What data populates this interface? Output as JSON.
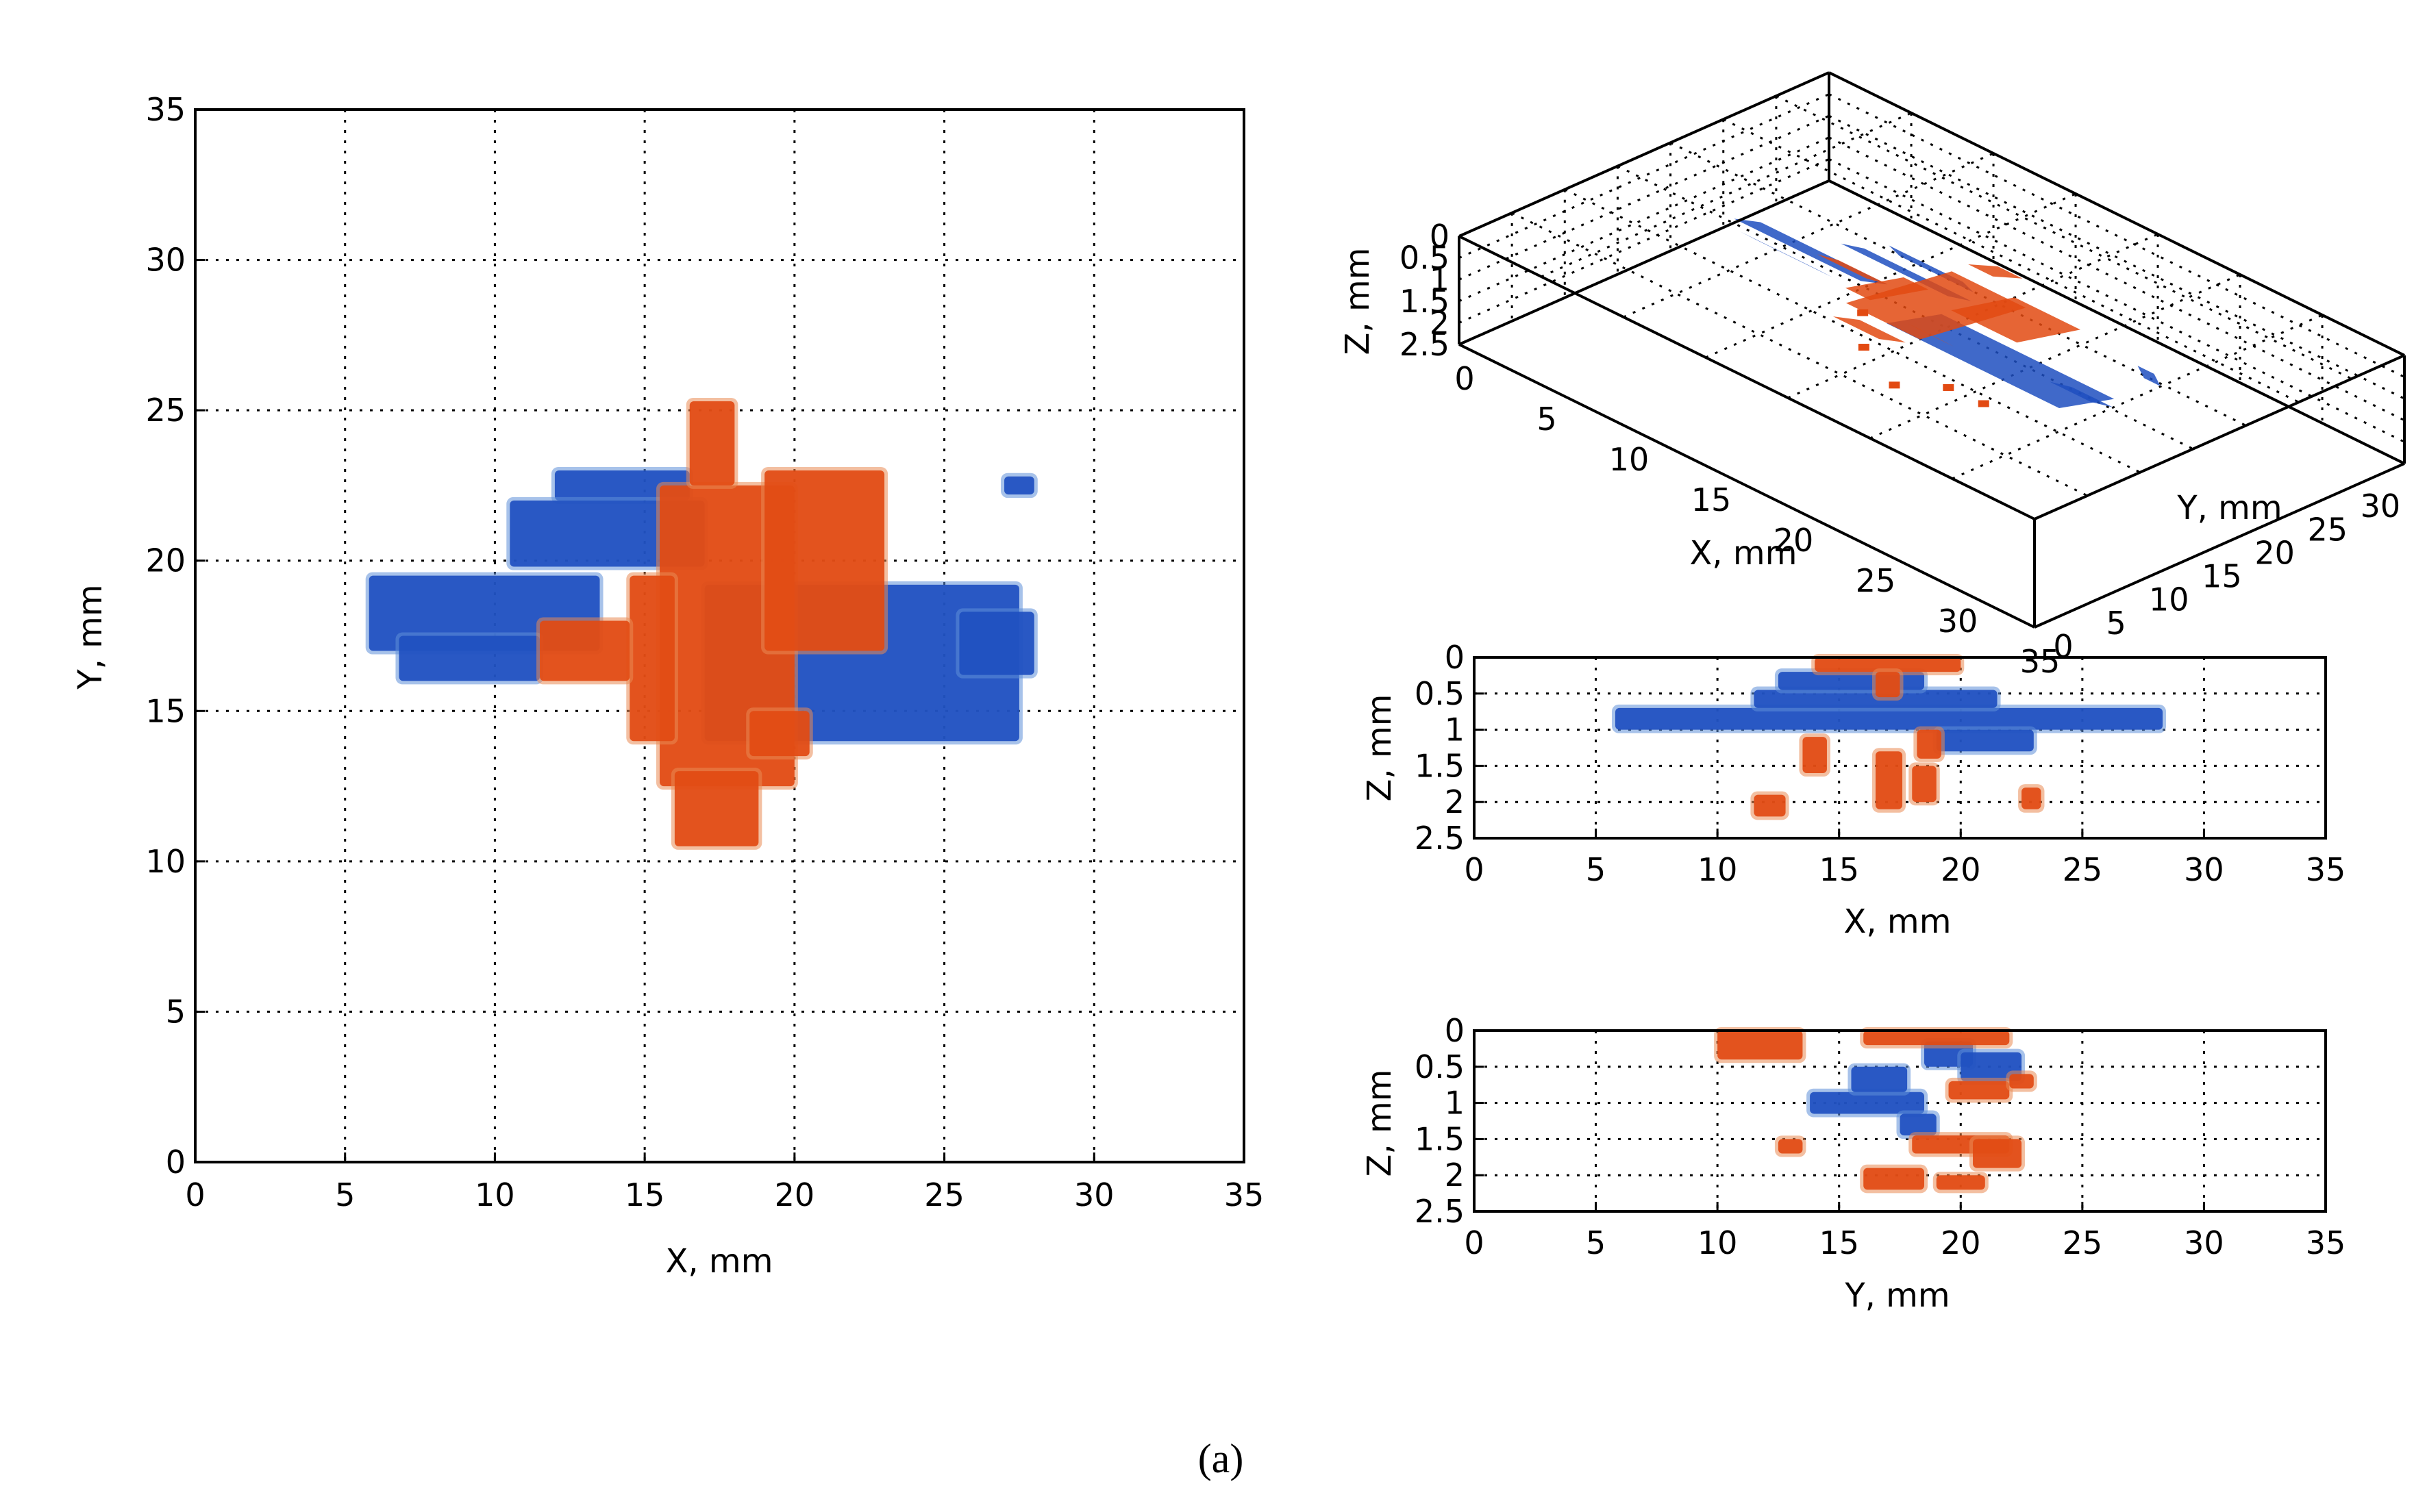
{
  "caption": "(a)",
  "colors": {
    "blue": "#1e4fc0",
    "blue_light": "#5f8fd8",
    "orange": "#e24a12",
    "orange_light": "#ea8a54"
  },
  "chart_data": [
    {
      "id": "xy_projection",
      "type": "heatmap",
      "title": "",
      "xlabel": "X, mm",
      "ylabel": "Y, mm",
      "xlim": [
        0,
        35
      ],
      "ylim": [
        0,
        35
      ],
      "xticks": [
        "0",
        "5",
        "10",
        "15",
        "20",
        "25",
        "30",
        "35"
      ],
      "yticks": [
        "0",
        "5",
        "10",
        "15",
        "20",
        "25",
        "30",
        "35"
      ],
      "grid": true,
      "series": [
        {
          "name": "blue region",
          "color": "blue",
          "rects": [
            [
              12,
              22,
              16.5,
              23
            ],
            [
              10.5,
              19.8,
              17,
              22
            ],
            [
              5.8,
              17,
              13.5,
              19.5
            ],
            [
              6.8,
              16,
              11.5,
              17.5
            ],
            [
              17,
              14,
              27.5,
              19.2
            ],
            [
              25.5,
              16.2,
              28,
              18.3
            ],
            [
              27,
              22.2,
              28,
              22.8
            ]
          ]
        },
        {
          "name": "orange region",
          "color": "orange",
          "rects": [
            [
              15.5,
              12.5,
              20,
              22.5
            ],
            [
              14.5,
              14,
              16,
              19.5
            ],
            [
              16.5,
              22.5,
              18,
              25.3
            ],
            [
              19,
              17,
              23,
              23
            ],
            [
              11.5,
              16,
              14.5,
              18
            ],
            [
              16,
              10.5,
              18.8,
              13
            ],
            [
              18.5,
              13.5,
              20.5,
              15
            ]
          ]
        }
      ]
    },
    {
      "id": "xyz_view",
      "type": "scatter",
      "title": "",
      "xlabel": "X, mm",
      "ylabel": "Y, mm",
      "zlabel": "Z, mm",
      "xlim": [
        0,
        35
      ],
      "ylim": [
        0,
        35
      ],
      "zlim": [
        0,
        2.5
      ],
      "xticks": [
        "0",
        "5",
        "10",
        "15",
        "20",
        "25",
        "30",
        "35"
      ],
      "yticks": [
        "0",
        "5",
        "10",
        "15",
        "20",
        "25",
        "30",
        "35"
      ],
      "zticks": [
        "0",
        "0.5",
        "1",
        "1.5",
        "2",
        "2.5"
      ],
      "grid": true
    },
    {
      "id": "xz_projection",
      "type": "heatmap",
      "title": "",
      "xlabel": "X, mm",
      "ylabel": "Z, mm",
      "xlim": [
        0,
        35
      ],
      "ylim": [
        0,
        2.5
      ],
      "xticks": [
        "0",
        "5",
        "10",
        "15",
        "20",
        "25",
        "30",
        "35"
      ],
      "yticks": [
        "0",
        "0.5",
        "1",
        "1.5",
        "2",
        "2.5"
      ],
      "grid": true,
      "series": [
        {
          "name": "blue region",
          "color": "blue",
          "rects": [
            [
              5.8,
              0.7,
              28.3,
              1.0
            ],
            [
              11.5,
              0.45,
              21.5,
              0.7
            ],
            [
              12.5,
              0.2,
              18.5,
              0.45
            ],
            [
              19,
              1.0,
              23,
              1.3
            ]
          ]
        },
        {
          "name": "orange region",
          "color": "orange",
          "rects": [
            [
              14,
              0,
              20,
              0.2
            ],
            [
              16.5,
              0.2,
              17.5,
              0.55
            ],
            [
              16.5,
              1.3,
              17.6,
              2.1
            ],
            [
              11.5,
              1.9,
              12.8,
              2.2
            ],
            [
              13.5,
              1.1,
              14.5,
              1.6
            ],
            [
              18,
              1.5,
              19,
              2.0
            ],
            [
              22.5,
              1.8,
              23.3,
              2.1
            ],
            [
              18.2,
              1.0,
              19.2,
              1.4
            ]
          ]
        }
      ]
    },
    {
      "id": "yz_projection",
      "type": "heatmap",
      "title": "",
      "xlabel": "Y, mm",
      "ylabel": "Z, mm",
      "xlim": [
        0,
        35
      ],
      "ylim": [
        0,
        2.5
      ],
      "xticks": [
        "0",
        "5",
        "10",
        "15",
        "20",
        "25",
        "30",
        "35"
      ],
      "yticks": [
        "0",
        "0.5",
        "1",
        "1.5",
        "2",
        "2.5"
      ],
      "grid": true,
      "series": [
        {
          "name": "blue region",
          "color": "blue",
          "rects": [
            [
              13.8,
              0.85,
              18.5,
              1.15
            ],
            [
              15.5,
              0.5,
              17.8,
              0.85
            ],
            [
              17.5,
              1.15,
              19,
              1.45
            ],
            [
              18.5,
              0.15,
              20.5,
              0.5
            ],
            [
              20,
              0.3,
              22.5,
              0.7
            ]
          ]
        },
        {
          "name": "orange region",
          "color": "orange",
          "rects": [
            [
              10,
              0,
              13.5,
              0.4
            ],
            [
              16,
              0,
              22,
              0.2
            ],
            [
              19.5,
              0.7,
              22,
              0.95
            ],
            [
              22,
              0.6,
              23,
              0.8
            ],
            [
              18,
              1.45,
              22,
              1.7
            ],
            [
              16,
              1.9,
              18.5,
              2.2
            ],
            [
              19,
              2.0,
              21,
              2.2
            ],
            [
              20.5,
              1.5,
              22.5,
              1.9
            ],
            [
              12.5,
              1.5,
              13.5,
              1.7
            ]
          ]
        }
      ]
    }
  ]
}
